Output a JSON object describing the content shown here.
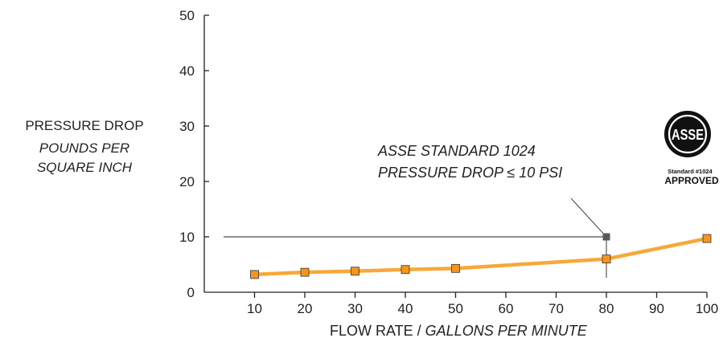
{
  "chart_data": {
    "type": "line",
    "ylabel": {
      "line1": "PRESSURE DROP",
      "line2": "POUNDS PER",
      "line3": "SQUARE INCH"
    },
    "xlabel": {
      "plain": "FLOW RATE / ",
      "italic": "GALLONS PER MINUTE"
    },
    "x_ticks": [
      "10",
      "20",
      "30",
      "40",
      "50",
      "60",
      "70",
      "80",
      "90",
      "100"
    ],
    "y_ticks": [
      "0",
      "10",
      "20",
      "30",
      "40",
      "50"
    ],
    "xlim": [
      0,
      100
    ],
    "ylim": [
      0,
      50
    ],
    "grid": false,
    "series": [
      {
        "color": "#f7a839",
        "marker_color": "#f7941d",
        "x": [
          10,
          20,
          30,
          40,
          50,
          80,
          100
        ],
        "y": [
          3.2,
          3.6,
          3.8,
          4.1,
          4.3,
          6.0,
          9.7
        ]
      }
    ],
    "reference": {
      "x": 80,
      "y": 10,
      "color": "#58595b",
      "line1": "ASSE STANDARD 1024",
      "line2": "PRESSURE DROP ≤ 10 PSI"
    }
  },
  "badge": {
    "logo_text": "ASSE",
    "standard": "Standard #1024",
    "approved": "APPROVED"
  }
}
